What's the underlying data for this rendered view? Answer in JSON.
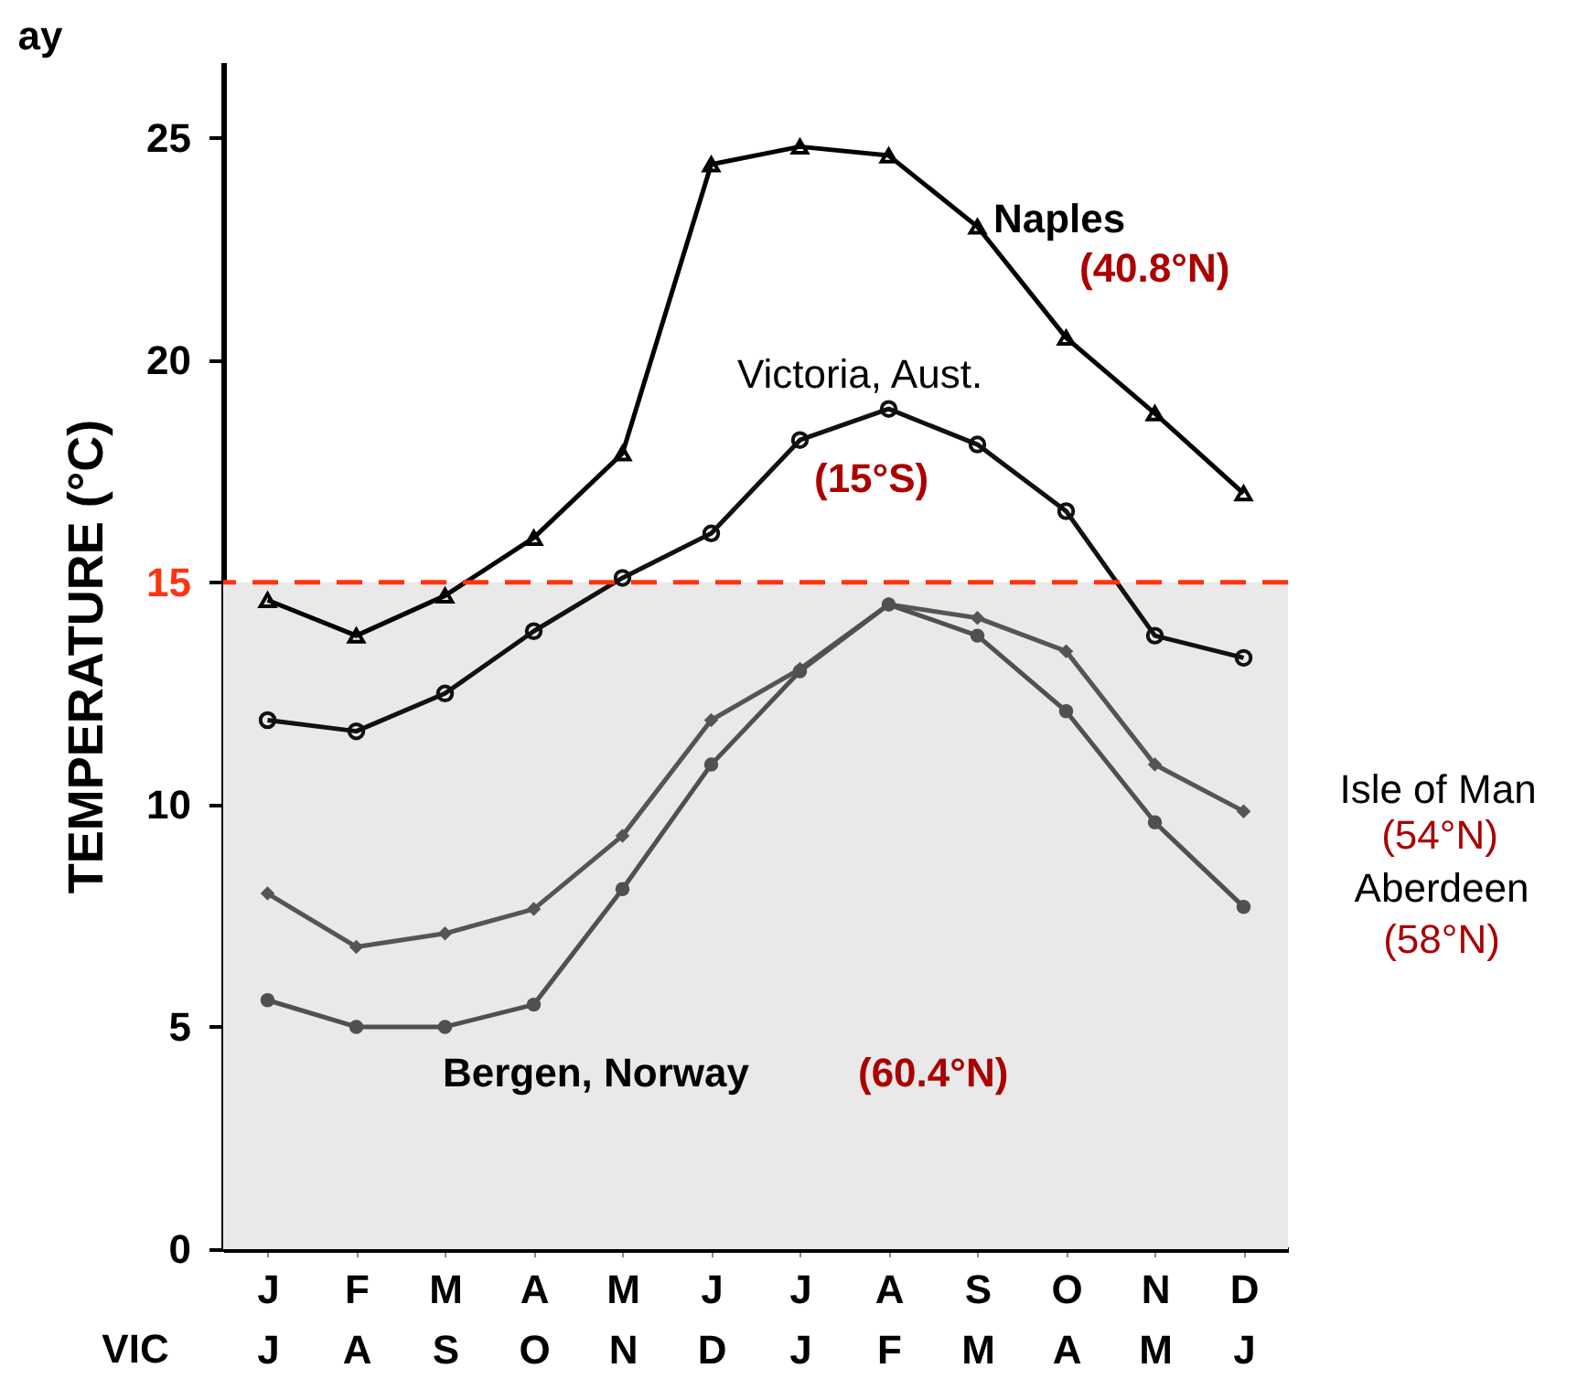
{
  "chart_data": {
    "type": "line",
    "ylabel": "TEMPERATURE (°C)",
    "categories": [
      "J\nJ",
      "F\nA",
      "M\nS",
      "A\nO",
      "M\nN",
      "J\nD",
      "J\nJ",
      "A\nF",
      "S\nM",
      "O\nA",
      "N\nM",
      "D\nJ"
    ],
    "ylim": [
      0,
      26.7
    ],
    "yticks": [
      0,
      5,
      10,
      {
        "value": 15,
        "label": "15"
      },
      20,
      25
    ],
    "series": [
      {
        "name": "Naples",
        "color": "#000000",
        "marker": "triangle",
        "values": [
          14.6,
          13.8,
          14.7,
          16.0,
          17.9,
          24.4,
          24.8,
          24.6,
          23.0,
          20.5,
          18.8,
          17.0
        ]
      },
      {
        "name": "Victoria, Aust.",
        "color": "#111111",
        "marker": "circle",
        "values": [
          11.9,
          11.65,
          12.5,
          13.9,
          15.1,
          16.1,
          18.2,
          18.9,
          18.1,
          16.6,
          13.8,
          13.3
        ]
      },
      {
        "name": "Isle of Man",
        "color": "#555555",
        "marker": "diamond",
        "values": [
          8.0,
          6.8,
          7.1,
          7.65,
          9.3,
          11.9,
          13.05,
          14.5,
          14.2,
          13.45,
          10.9,
          9.85
        ]
      },
      {
        "name": "Aberdeen",
        "color": "#505050",
        "marker": "circle",
        "values": [
          5.6,
          5.0,
          5.0,
          5.5,
          8.1,
          10.9,
          13.0,
          14.5,
          13.8,
          12.1,
          9.6,
          7.7
        ]
      }
    ],
    "ref_lines": [
      {
        "axis": "y",
        "value": 15,
        "color": "#ff3311",
        "line_style": "dashed"
      }
    ],
    "bands": [
      {
        "axis": "y",
        "from": 0,
        "to": 15,
        "color": "#e9e9e9"
      }
    ],
    "annotations": [
      "(40.8°N)",
      "(15°S)",
      "(54°N)",
      "(58°N)",
      "Bergen, Norway",
      "(60.4°N)",
      "VIC",
      "ay"
    ]
  }
}
